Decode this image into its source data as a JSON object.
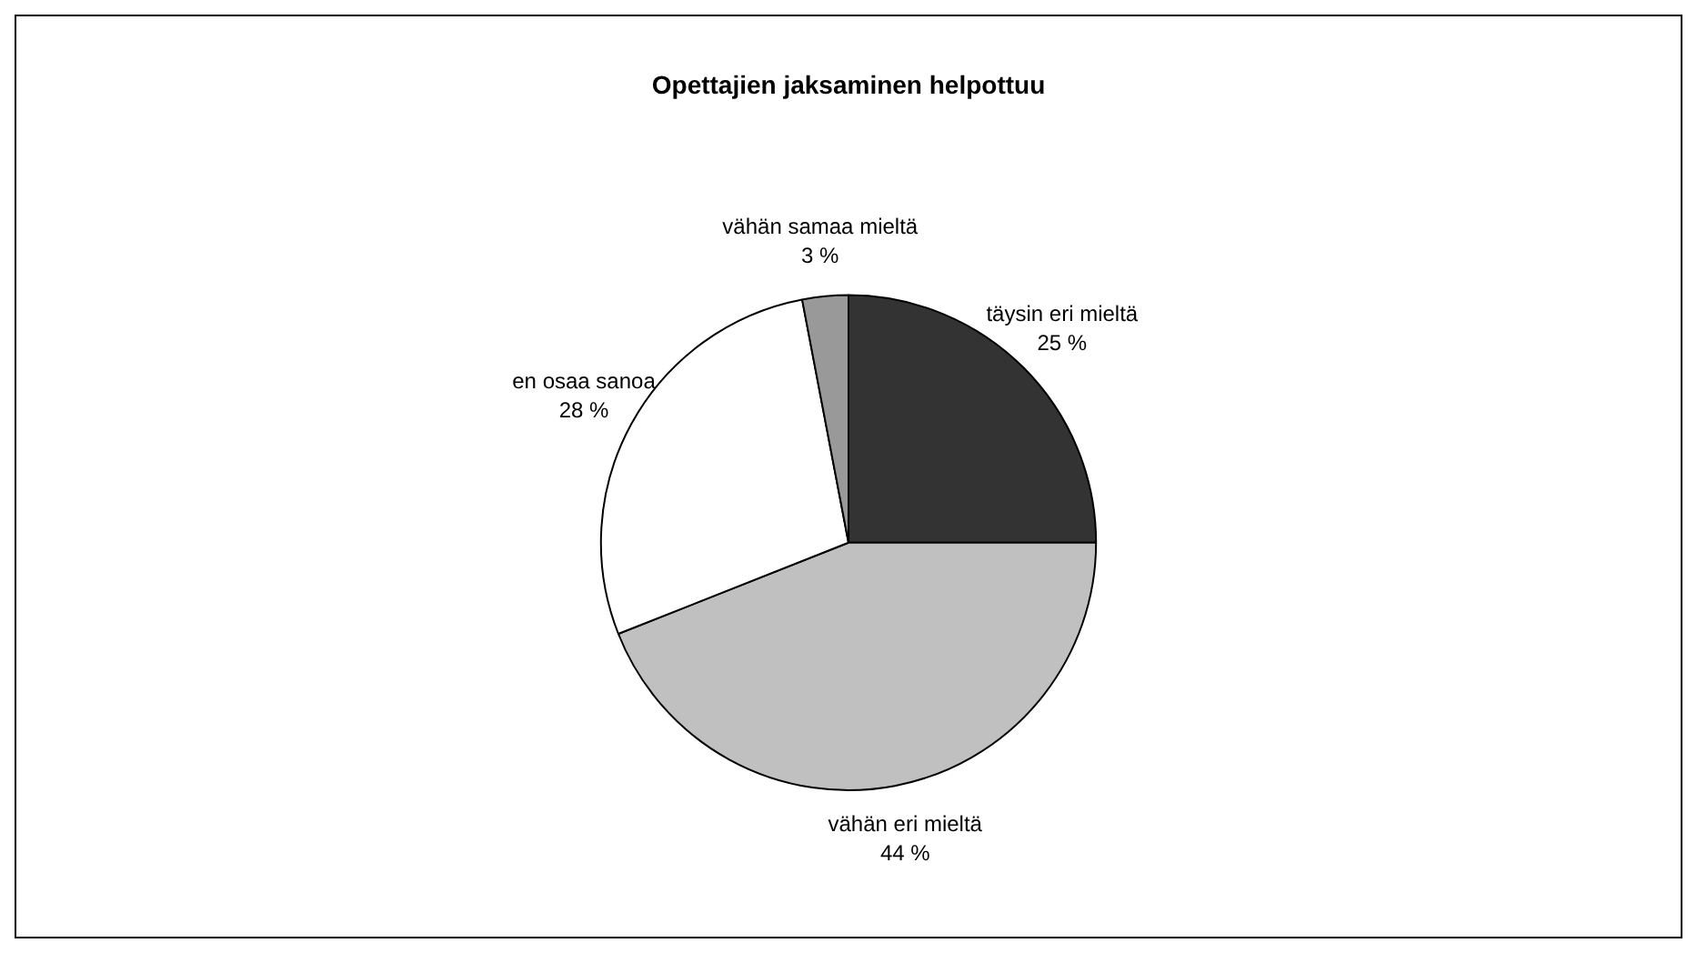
{
  "chart_data": {
    "type": "pie",
    "title": "Opettajien jaksaminen helpottuu",
    "categories": [
      "täysin eri mieltä",
      "vähän eri mieltä",
      "en osaa sanoa",
      "vähän samaa mieltä"
    ],
    "values": [
      25,
      44,
      28,
      3
    ],
    "value_labels": [
      "25 %",
      "44 %",
      "28 %",
      "3 %"
    ],
    "colors": [
      "#333333",
      "#c0c0c0",
      "#ffffff",
      "#999999"
    ],
    "legend": false
  }
}
